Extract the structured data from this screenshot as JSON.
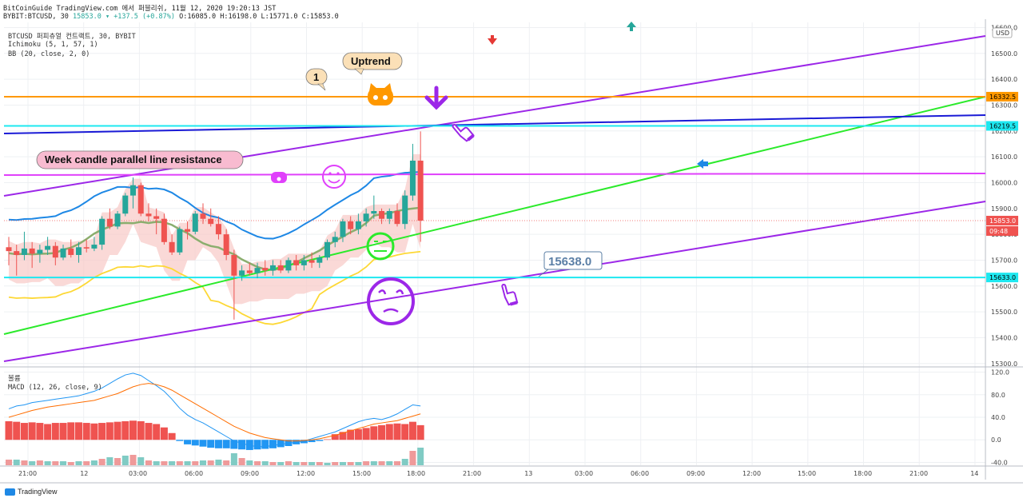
{
  "header": {
    "line1": "BitCoinGuide TradingView.com 에서 퍼블리쉬, 11월 12, 2020 19:20:13 JST",
    "symbol": "BYBIT:BTCUSD, 30",
    "change": "15853.0 ▾ +137.5 (+0.87%)",
    "ohlc_o": "O:16085.0",
    "ohlc_h": "H:16198.0",
    "ohlc_l": "L:15771.0",
    "ohlc_c": "C:15853.0"
  },
  "legend": {
    "main": "BTCUSD 퍼피츄얼 컨트랙트, 30, BYBIT",
    "ichimoku": "Ichimoku (5, 1, 57, 1)",
    "bb": "BB (20, close, 2, 0)",
    "pane2_title": "볼륨",
    "macd": "MACD (12, 26, close, 9)"
  },
  "currency": "USD",
  "brand": "TradingView",
  "chart_data": {
    "type": "candlestick",
    "price_axis": {
      "ticks": [
        "16600.0",
        "16500.0",
        "16400.0",
        "16300.0",
        "16200.0",
        "16100.0",
        "16000.0",
        "15900.0",
        "15800.0",
        "15700.0",
        "15600.0",
        "15500.0",
        "15400.0",
        "15300.0"
      ],
      "range": [
        15290,
        16620
      ]
    },
    "macd_axis": {
      "ticks": [
        "120.0",
        "80.0",
        "40.0",
        "0.0",
        "-40.0"
      ],
      "range": [
        -45,
        125
      ]
    },
    "time_axis": {
      "labels": [
        "21:00",
        "12",
        "03:00",
        "06:00",
        "09:00",
        "12:00",
        "15:00",
        "18:00",
        "21:00",
        "13",
        "03:00",
        "06:00",
        "09:00",
        "12:00",
        "15:00",
        "18:00",
        "21:00",
        "14"
      ]
    },
    "price_labels": {
      "orange": "16332.5",
      "cyan_top": "16219.5",
      "last": "15853.0",
      "countdown": "09:48",
      "cyan_bottom": "15633.0"
    },
    "candles": [
      {
        "o": 15750,
        "h": 15790,
        "l": 15680,
        "c": 15735
      },
      {
        "o": 15735,
        "h": 15760,
        "l": 15640,
        "c": 15720
      },
      {
        "o": 15720,
        "h": 15810,
        "l": 15700,
        "c": 15745
      },
      {
        "o": 15745,
        "h": 15770,
        "l": 15670,
        "c": 15725
      },
      {
        "o": 15725,
        "h": 15760,
        "l": 15690,
        "c": 15740
      },
      {
        "o": 15740,
        "h": 15790,
        "l": 15720,
        "c": 15755
      },
      {
        "o": 15755,
        "h": 15770,
        "l": 15680,
        "c": 15710
      },
      {
        "o": 15710,
        "h": 15760,
        "l": 15700,
        "c": 15745
      },
      {
        "o": 15745,
        "h": 15780,
        "l": 15710,
        "c": 15720
      },
      {
        "o": 15720,
        "h": 15770,
        "l": 15690,
        "c": 15750
      },
      {
        "o": 15750,
        "h": 15780,
        "l": 15730,
        "c": 15745
      },
      {
        "o": 15745,
        "h": 15790,
        "l": 15735,
        "c": 15760
      },
      {
        "o": 15760,
        "h": 15870,
        "l": 15740,
        "c": 15860
      },
      {
        "o": 15860,
        "h": 15900,
        "l": 15820,
        "c": 15830
      },
      {
        "o": 15830,
        "h": 15890,
        "l": 15820,
        "c": 15880
      },
      {
        "o": 15880,
        "h": 15960,
        "l": 15870,
        "c": 15950
      },
      {
        "o": 15950,
        "h": 16020,
        "l": 15900,
        "c": 15990
      },
      {
        "o": 15990,
        "h": 16000,
        "l": 15870,
        "c": 15880
      },
      {
        "o": 15880,
        "h": 15920,
        "l": 15850,
        "c": 15870
      },
      {
        "o": 15870,
        "h": 15900,
        "l": 15800,
        "c": 15860
      },
      {
        "o": 15860,
        "h": 15880,
        "l": 15760,
        "c": 15770
      },
      {
        "o": 15770,
        "h": 15800,
        "l": 15720,
        "c": 15730
      },
      {
        "o": 15730,
        "h": 15830,
        "l": 15720,
        "c": 15820
      },
      {
        "o": 15820,
        "h": 15850,
        "l": 15780,
        "c": 15810
      },
      {
        "o": 15810,
        "h": 15890,
        "l": 15800,
        "c": 15880
      },
      {
        "o": 15880,
        "h": 15920,
        "l": 15840,
        "c": 15860
      },
      {
        "o": 15860,
        "h": 15900,
        "l": 15830,
        "c": 15840
      },
      {
        "o": 15840,
        "h": 15870,
        "l": 15780,
        "c": 15800
      },
      {
        "o": 15800,
        "h": 15820,
        "l": 15700,
        "c": 15720
      },
      {
        "o": 15720,
        "h": 15740,
        "l": 15470,
        "c": 15640
      },
      {
        "o": 15640,
        "h": 15680,
        "l": 15620,
        "c": 15660
      },
      {
        "o": 15660,
        "h": 15690,
        "l": 15640,
        "c": 15650
      },
      {
        "o": 15650,
        "h": 15690,
        "l": 15630,
        "c": 15670
      },
      {
        "o": 15670,
        "h": 15700,
        "l": 15640,
        "c": 15660
      },
      {
        "o": 15660,
        "h": 15700,
        "l": 15640,
        "c": 15680
      },
      {
        "o": 15680,
        "h": 15700,
        "l": 15650,
        "c": 15660
      },
      {
        "o": 15660,
        "h": 15710,
        "l": 15650,
        "c": 15700
      },
      {
        "o": 15700,
        "h": 15720,
        "l": 15660,
        "c": 15680
      },
      {
        "o": 15680,
        "h": 15720,
        "l": 15660,
        "c": 15700
      },
      {
        "o": 15700,
        "h": 15730,
        "l": 15670,
        "c": 15690
      },
      {
        "o": 15690,
        "h": 15720,
        "l": 15670,
        "c": 15710
      },
      {
        "o": 15710,
        "h": 15780,
        "l": 15700,
        "c": 15770
      },
      {
        "o": 15770,
        "h": 15810,
        "l": 15750,
        "c": 15790
      },
      {
        "o": 15790,
        "h": 15860,
        "l": 15770,
        "c": 15850
      },
      {
        "o": 15850,
        "h": 15870,
        "l": 15800,
        "c": 15820
      },
      {
        "o": 15820,
        "h": 15880,
        "l": 15800,
        "c": 15850
      },
      {
        "o": 15850,
        "h": 15900,
        "l": 15830,
        "c": 15880
      },
      {
        "o": 15880,
        "h": 15950,
        "l": 15860,
        "c": 15890
      },
      {
        "o": 15890,
        "h": 15900,
        "l": 15840,
        "c": 15860
      },
      {
        "o": 15860,
        "h": 15900,
        "l": 15840,
        "c": 15890
      },
      {
        "o": 15890,
        "h": 15920,
        "l": 15830,
        "c": 15840
      },
      {
        "o": 15840,
        "h": 15970,
        "l": 15820,
        "c": 15950
      },
      {
        "o": 15950,
        "h": 16150,
        "l": 15930,
        "c": 16085
      },
      {
        "o": 16085,
        "h": 16198,
        "l": 15771,
        "c": 15853
      }
    ],
    "macd_hist": [
      33,
      32,
      30,
      31,
      30,
      28,
      30,
      30,
      31,
      31,
      30,
      29,
      30,
      31,
      32,
      33,
      34,
      33,
      30,
      28,
      22,
      12,
      -2,
      -8,
      -10,
      -12,
      -14,
      -15,
      -15,
      -16,
      -17,
      -18,
      -17,
      -16,
      -15,
      -13,
      -11,
      -8,
      -6,
      -4,
      -2,
      1,
      10,
      14,
      18,
      19,
      21,
      24,
      26,
      28,
      29,
      28,
      32,
      26
    ],
    "volume": [
      7,
      7,
      6,
      5,
      6,
      5,
      5,
      5,
      4,
      5,
      5,
      6,
      8,
      10,
      9,
      12,
      13,
      10,
      6,
      5,
      5,
      5,
      5,
      5,
      5,
      6,
      6,
      7,
      6,
      15,
      9,
      6,
      5,
      5,
      4,
      4,
      5,
      4,
      4,
      4,
      4,
      3,
      4,
      4,
      4,
      4,
      5,
      5,
      5,
      5,
      5,
      8,
      18,
      22
    ]
  }
}
